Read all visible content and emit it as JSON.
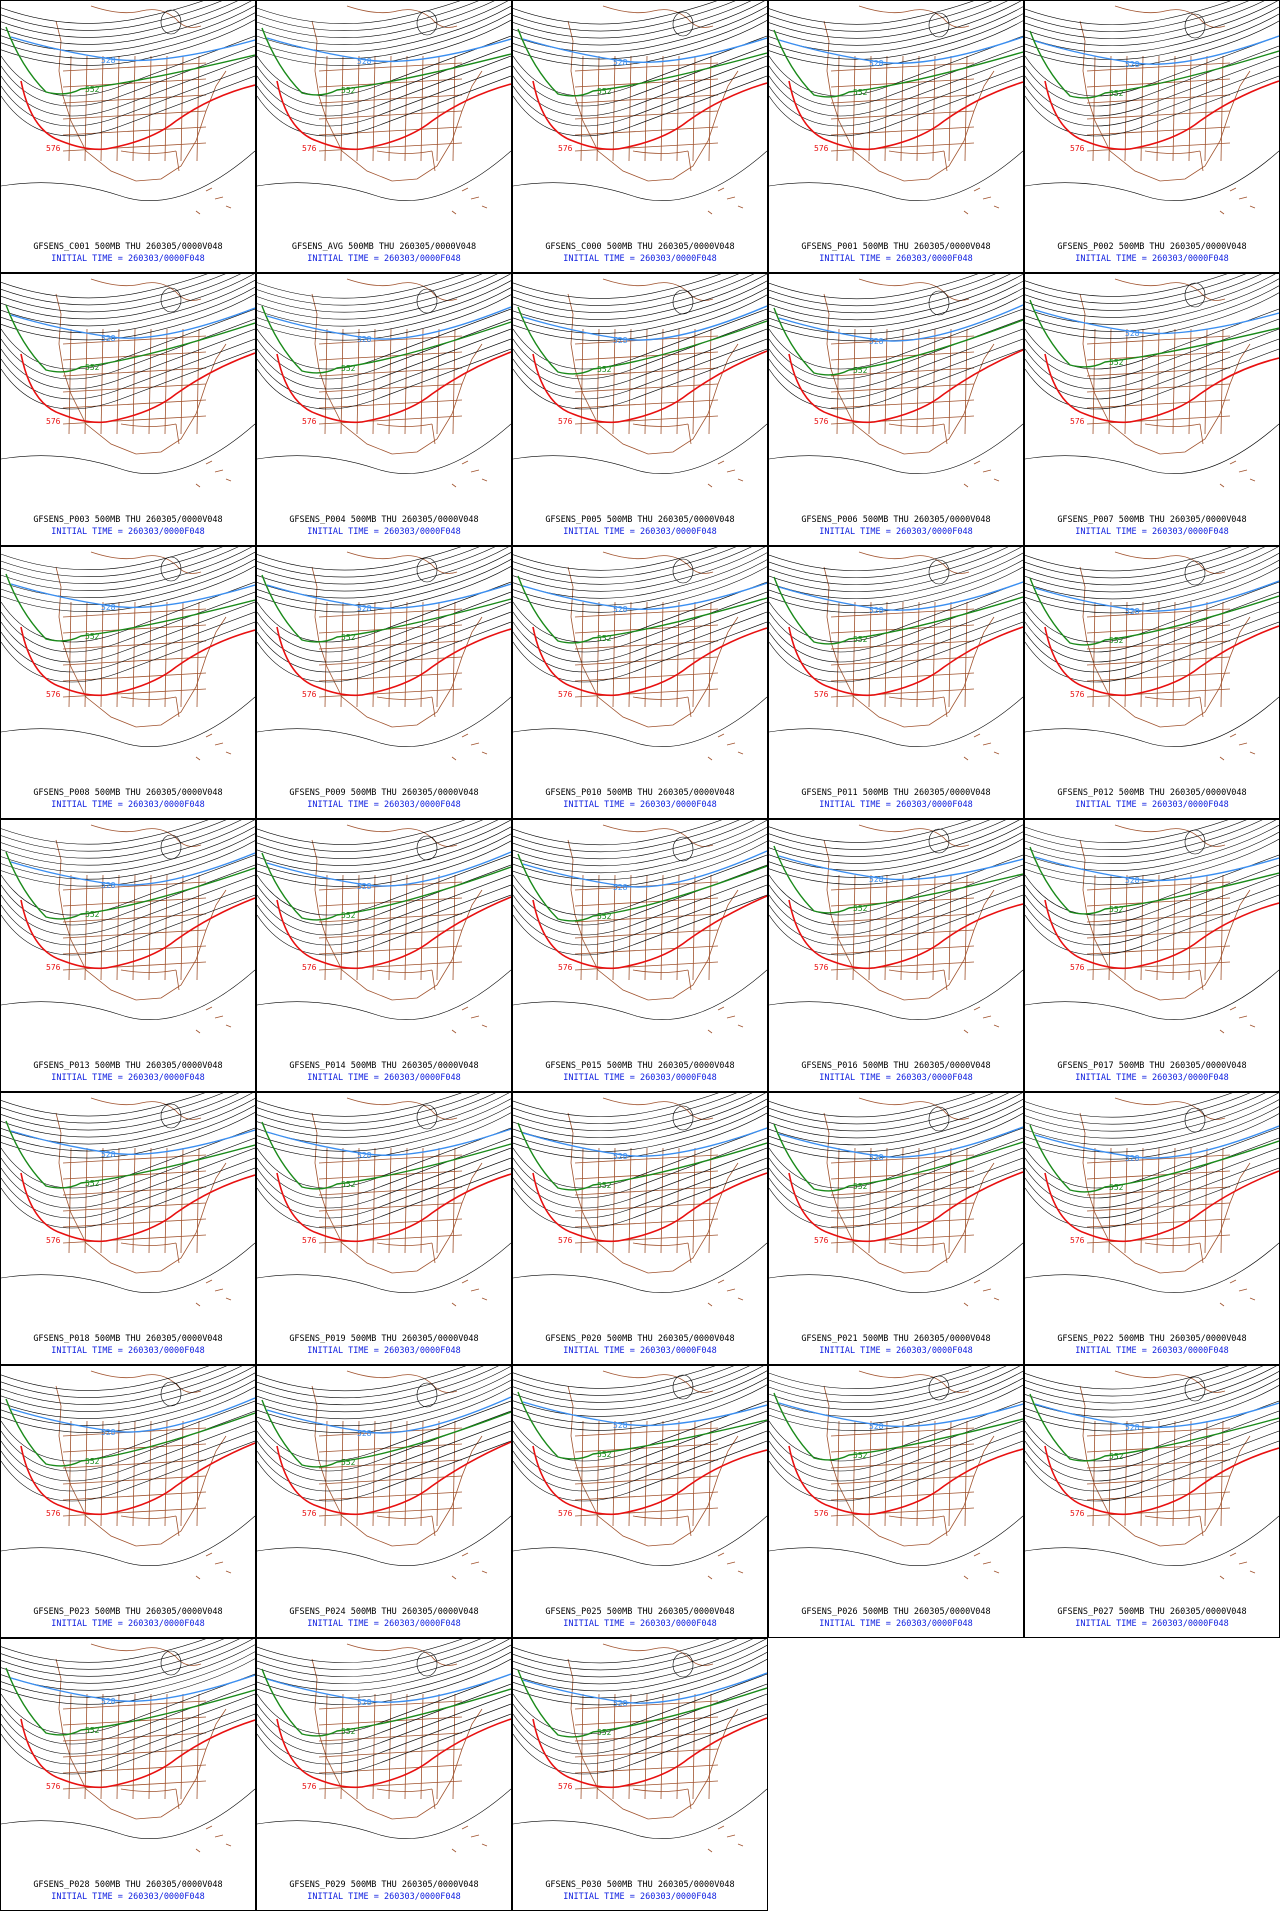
{
  "common": {
    "level": "500MB",
    "valid": "THU 260305/0000V048",
    "init": "INITIAL TIME = 260303/0000F048",
    "contour_labels": {
      "blue": "528",
      "green": "552",
      "red": "576"
    },
    "colors": {
      "blue": "#3a8ef0",
      "green": "#1a8a1a",
      "red": "#e81010",
      "black": "#000000",
      "coast": "#a0522d",
      "caption_init": "#1020e0"
    }
  },
  "members": [
    "GFSENS_C001",
    "GFSENS_AVG",
    "GFSENS_C000",
    "GFSENS_P001",
    "GFSENS_P002",
    "GFSENS_P003",
    "GFSENS_P004",
    "GFSENS_P005",
    "GFSENS_P006",
    "GFSENS_P007",
    "GFSENS_P008",
    "GFSENS_P009",
    "GFSENS_P010",
    "GFSENS_P011",
    "GFSENS_P012",
    "GFSENS_P013",
    "GFSENS_P014",
    "GFSENS_P015",
    "GFSENS_P016",
    "GFSENS_P017",
    "GFSENS_P018",
    "GFSENS_P019",
    "GFSENS_P020",
    "GFSENS_P021",
    "GFSENS_P022",
    "GFSENS_P023",
    "GFSENS_P024",
    "GFSENS_P025",
    "GFSENS_P026",
    "GFSENS_P027",
    "GFSENS_P028",
    "GFSENS_P029",
    "GFSENS_P030"
  ]
}
